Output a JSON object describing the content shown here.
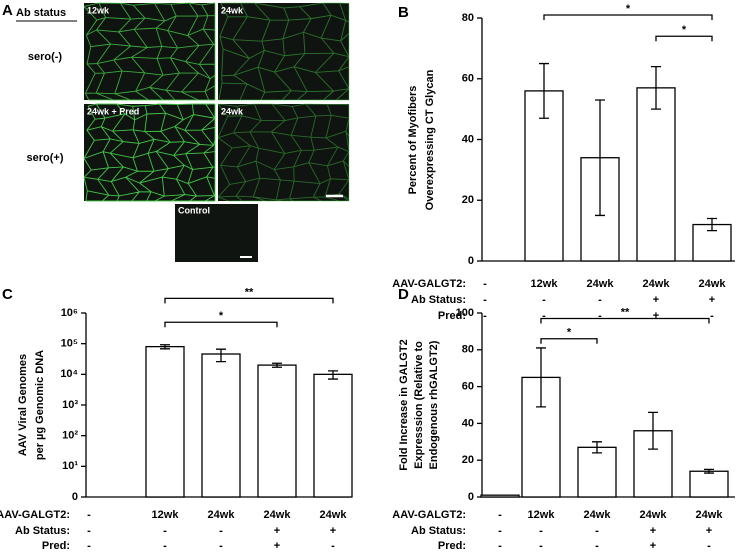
{
  "panel_a": {
    "panel": "A",
    "heading": "Ab status",
    "rows": [
      "sero(-)",
      "sero(+)"
    ],
    "tiles": [
      "12wk",
      "24wk",
      "24wk + Pred",
      "24wk"
    ],
    "control": "Control"
  },
  "chart_data": [
    {
      "type": "bar",
      "panel": "B",
      "ylabel": [
        "Percent of Myofibers",
        "Overexpressing CT Glycan"
      ],
      "category_label": "AAV-GALGT2:",
      "categories": [
        "-",
        "12wk",
        "24wk",
        "24wk",
        "24wk"
      ],
      "rows": [
        {
          "name": "Ab Status:",
          "values": [
            "-",
            "-",
            "-",
            "+",
            "+"
          ]
        },
        {
          "name": "Pred:",
          "values": [
            "-",
            "-",
            "-",
            "+",
            "-"
          ]
        }
      ],
      "values": [
        null,
        56,
        34,
        57,
        12
      ],
      "errors": [
        null,
        9,
        19,
        7,
        2
      ],
      "color": "#ffffff",
      "ylim": [
        0,
        80
      ],
      "yticks": [
        0,
        20,
        40,
        60,
        80
      ],
      "brackets": [
        {
          "from": 1,
          "to": 4,
          "y": 81,
          "label": "*"
        },
        {
          "from": 3,
          "to": 4,
          "y": 74,
          "label": "*"
        }
      ]
    },
    {
      "type": "bar",
      "panel": "C",
      "ylabel": [
        "AAV Viral Genomes",
        "per µg Genomic DNA"
      ],
      "category_label": "AAV-GALGT2:",
      "categories": [
        "-",
        "12wk",
        "24wk",
        "24wk",
        "24wk"
      ],
      "rows": [
        {
          "name": "Ab Status:",
          "values": [
            "-",
            "-",
            "-",
            "+",
            "+"
          ]
        },
        {
          "name": "Pred:",
          "values": [
            "-",
            "-",
            "-",
            "+",
            "-"
          ]
        }
      ],
      "values": [
        null,
        80000,
        46000,
        20000,
        10000
      ],
      "errors": [
        null,
        12000,
        20000,
        3000,
        3000
      ],
      "color": "#ffffff",
      "log_scale": true,
      "ylim": [
        1,
        1000000
      ],
      "yticks": [
        {
          "value": 1,
          "label": "0"
        },
        {
          "value": 10,
          "label": "10¹"
        },
        {
          "value": 100,
          "label": "10²"
        },
        {
          "value": 1000,
          "label": "10³"
        },
        {
          "value": 10000,
          "label": "10⁴"
        },
        {
          "value": 100000,
          "label": "10⁵"
        },
        {
          "value": 1000000,
          "label": "10⁶"
        }
      ],
      "brackets": [
        {
          "from": 1,
          "to": 4,
          "y": 3000000,
          "label": "**"
        },
        {
          "from": 1,
          "to": 3,
          "y": 500000,
          "label": "*"
        }
      ]
    },
    {
      "type": "bar",
      "panel": "D",
      "ylabel": [
        "Fold Increase in GALGT2",
        "Expresssion (Relative to",
        "Endogenous rhGALGT2)"
      ],
      "category_label": "AAV-GALGT2:",
      "categories": [
        "-",
        "12wk",
        "24wk",
        "24wk",
        "24wk"
      ],
      "rows": [
        {
          "name": "Ab Status:",
          "values": [
            "-",
            "-",
            "-",
            "+",
            "+"
          ]
        },
        {
          "name": "Pred:",
          "values": [
            "-",
            "-",
            "-",
            "+",
            "-"
          ]
        }
      ],
      "values": [
        1,
        65,
        27,
        36,
        14
      ],
      "errors": [
        0,
        16,
        3,
        10,
        1
      ],
      "color": "#ffffff",
      "ylim": [
        0,
        100
      ],
      "yticks": [
        0,
        20,
        40,
        60,
        80,
        100
      ],
      "brackets": [
        {
          "from": 1,
          "to": 4,
          "y": 97,
          "label": "**"
        },
        {
          "from": 1,
          "to": 2,
          "y": 86,
          "label": "*"
        }
      ]
    }
  ]
}
